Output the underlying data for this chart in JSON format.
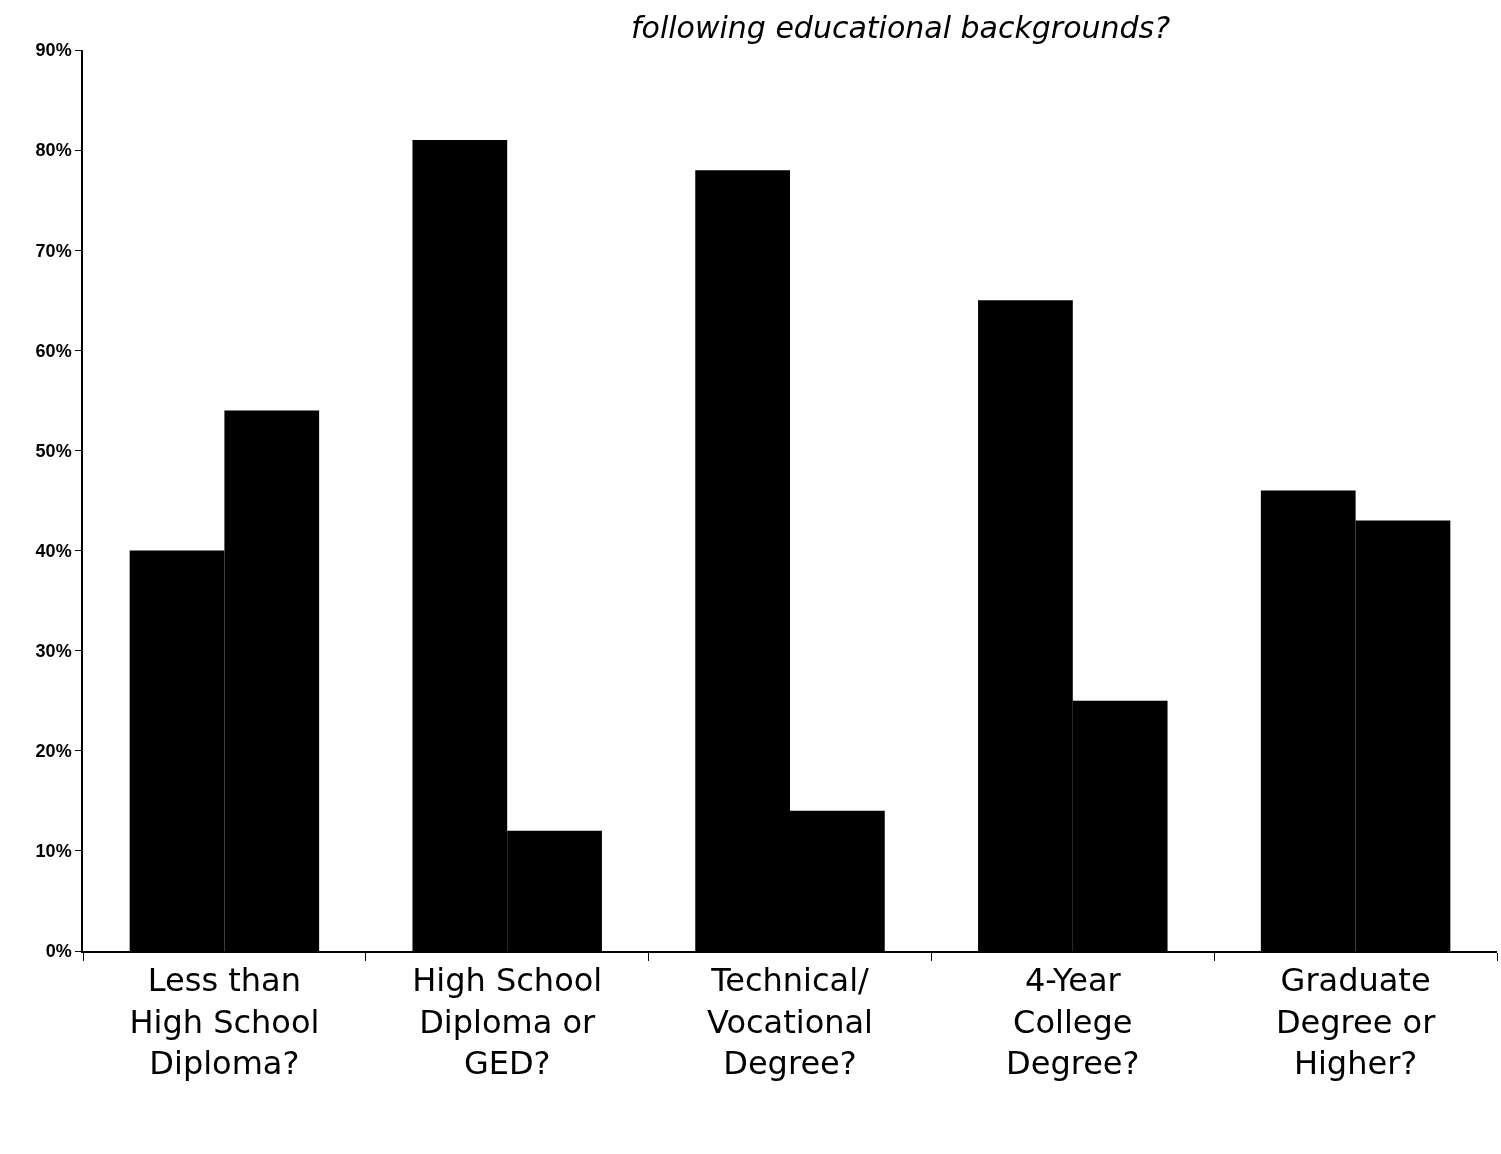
{
  "chart_data": {
    "type": "bar",
    "title": "following educational backgrounds?",
    "categories": [
      "Less than High School Diploma?",
      "High School Diploma or GED?",
      "Technical/ Vocational Degree?",
      "4-Year College Degree?",
      "Graduate Degree or Higher?"
    ],
    "series": [
      {
        "color": "#000000",
        "values": [
          40,
          81,
          78,
          65,
          46
        ]
      },
      {
        "color": "#000000",
        "values": [
          54,
          12,
          14,
          25,
          43
        ]
      }
    ],
    "ylim": [
      0,
      90
    ],
    "yticks": [
      {
        "value": 0,
        "label": "0%"
      },
      {
        "value": 10,
        "label": "10%"
      },
      {
        "value": 20,
        "label": "20%"
      },
      {
        "value": 30,
        "label": "30%"
      },
      {
        "value": 40,
        "label": "40%"
      },
      {
        "value": 50,
        "label": "50%"
      },
      {
        "value": 60,
        "label": "60%"
      },
      {
        "value": 70,
        "label": "70%"
      },
      {
        "value": 80,
        "label": "80%"
      },
      {
        "value": 90,
        "label": "90%"
      }
    ],
    "grid": false
  }
}
